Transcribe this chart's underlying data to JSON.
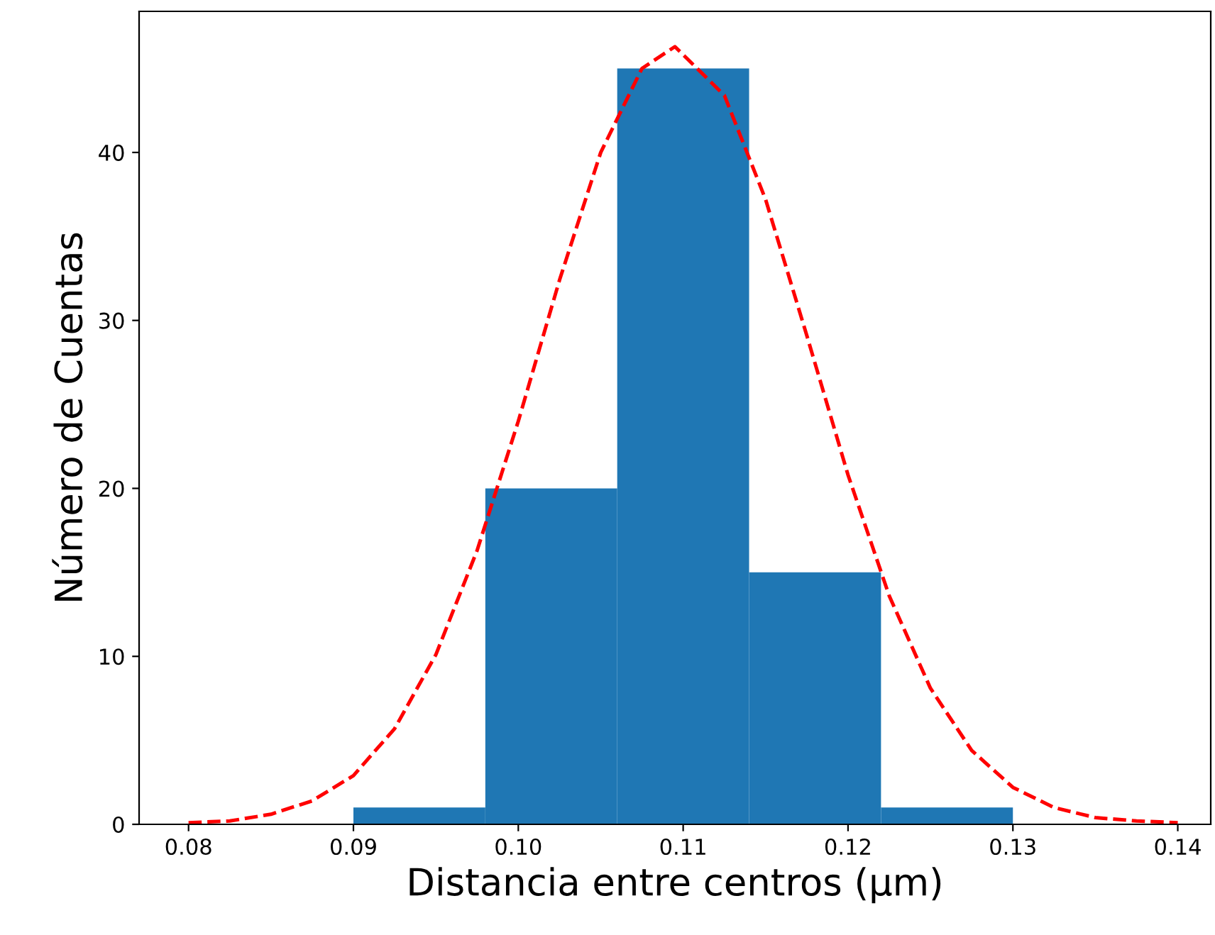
{
  "chart_data": {
    "type": "histogram",
    "xlabel": "Distancia entre centros (μm)",
    "ylabel": "Número de Cuentas",
    "bins": [
      0.09,
      0.098,
      0.106,
      0.114,
      0.122,
      0.13
    ],
    "values": [
      1,
      20,
      45,
      15,
      1
    ],
    "color": "#1f77b4",
    "series": [
      {
        "type": "line",
        "color": "#ff0000",
        "line_style": "dashed",
        "x": [
          0.08,
          0.0825,
          0.085,
          0.0875,
          0.09,
          0.0925,
          0.095,
          0.0975,
          0.1,
          0.1025,
          0.105,
          0.1075,
          0.1095,
          0.1125,
          0.115,
          0.1175,
          0.12,
          0.1225,
          0.125,
          0.1275,
          0.13,
          0.1325,
          0.135,
          0.1375,
          0.14
        ],
        "values": [
          0.1,
          0.2,
          0.6,
          1.4,
          2.9,
          5.7,
          10.1,
          16.3,
          24.0,
          32.4,
          40.0,
          45.0,
          46.3,
          43.4,
          37.2,
          29.1,
          20.8,
          13.6,
          8.1,
          4.4,
          2.2,
          1.0,
          0.4,
          0.2,
          0.1
        ]
      }
    ],
    "xlim": [
      0.077,
      0.142
    ],
    "xticks": [
      {
        "value": 0.08,
        "label": "0.08"
      },
      {
        "value": 0.09,
        "label": "0.09"
      },
      {
        "value": 0.1,
        "label": "0.10"
      },
      {
        "value": 0.11,
        "label": "0.11"
      },
      {
        "value": 0.12,
        "label": "0.12"
      },
      {
        "value": 0.13,
        "label": "0.13"
      },
      {
        "value": 0.14,
        "label": "0.14"
      }
    ],
    "ylim": [
      0,
      48.4
    ],
    "yticks": [
      0,
      10,
      20,
      30,
      40
    ]
  }
}
